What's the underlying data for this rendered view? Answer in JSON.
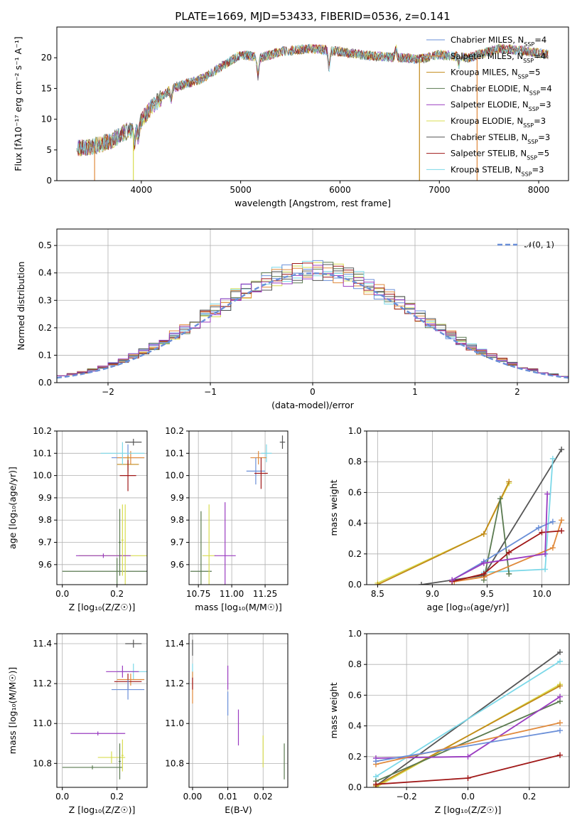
{
  "title": "PLATE=1669, MJD=53433, FIBERID=0536, z=0.141",
  "colors": {
    "Chabrier MILES": "#6a8fd8",
    "Salpeter MILES": "#e08a3c",
    "Kroupa MILES": "#c28a1a",
    "Chabrier ELODIE": "#5a7a50",
    "Salpeter ELODIE": "#9a3cc0",
    "Kroupa ELODIE": "#d8dc50",
    "Chabrier STELIB": "#555555",
    "Salpeter STELIB": "#a01818",
    "Kroupa STELIB": "#7cd8e8"
  },
  "chart_data": [
    {
      "id": "spectrum",
      "type": "line",
      "xlabel": "wavelength [Angstrom, rest frame]",
      "ylabel": "Flux [fλ10⁻¹⁷ erg cm⁻² s⁻¹ A⁻¹]",
      "xlim": [
        3150,
        8300
      ],
      "ylim": [
        0,
        25
      ],
      "xticks": [
        4000,
        5000,
        6000,
        7000,
        8000
      ],
      "yticks": [
        0,
        5,
        10,
        15,
        20
      ],
      "legend_position": "upper-right",
      "legend": [
        "Chabrier MILES, N_SSP=4",
        "Salpeter MILES, N_SSP=4",
        "Kroupa MILES, N_SSP=5",
        "Chabrier ELODIE, N_SSP=4",
        "Salpeter ELODIE, N_SSP=3",
        "Kroupa ELODIE, N_SSP=3",
        "Chabrier STELIB, N_SSP=3",
        "Salpeter STELIB, N_SSP=5",
        "Kroupa STELIB, N_SSP=3"
      ],
      "continuum": [
        [
          3350,
          5.3
        ],
        [
          3500,
          5.5
        ],
        [
          3700,
          6.5
        ],
        [
          3850,
          8
        ],
        [
          3950,
          8.5
        ],
        [
          4100,
          12
        ],
        [
          4300,
          15
        ],
        [
          4600,
          16.5
        ],
        [
          4800,
          18.5
        ],
        [
          5000,
          20.5
        ],
        [
          5200,
          20
        ],
        [
          5400,
          21
        ],
        [
          5700,
          21.5
        ],
        [
          6000,
          21
        ],
        [
          6200,
          20.5
        ],
        [
          6400,
          20.2
        ],
        [
          6600,
          20
        ],
        [
          6800,
          19.8
        ],
        [
          7000,
          20.5
        ],
        [
          7300,
          20
        ],
        [
          7600,
          21.5
        ],
        [
          7800,
          21.2
        ],
        [
          8100,
          20.5
        ]
      ],
      "features": [
        [
          3930,
          -2.5
        ],
        [
          3970,
          -2
        ],
        [
          4300,
          -2
        ],
        [
          5175,
          -3
        ],
        [
          5890,
          -3
        ],
        [
          6563,
          1.5
        ],
        [
          7200,
          -1.5
        ]
      ],
      "spikes": [
        [
          3530,
          "Salpeter MILES"
        ],
        [
          3920,
          "Kroupa ELODIE"
        ],
        [
          6800,
          "Kroupa MILES"
        ],
        [
          7380,
          "Salpeter MILES"
        ]
      ],
      "x_start": 3350,
      "x_end": 8100
    },
    {
      "id": "residuals",
      "type": "bar",
      "xlabel": "(data-model)/error",
      "ylabel": "Normed distribution",
      "xlim": [
        -2.5,
        2.5
      ],
      "ylim": [
        0,
        0.56
      ],
      "xticks": [
        -2,
        -1,
        0,
        1,
        2
      ],
      "yticks": [
        0.0,
        0.1,
        0.2,
        0.3,
        0.4,
        0.5
      ],
      "legend_position": "upper-right",
      "legend": [
        "𝒩(0, 1)"
      ],
      "bin_width": 0.1
    },
    {
      "id": "Z_vs_age",
      "type": "scatter",
      "xlabel": "Z [log₁₀(Z/Z☉)]",
      "ylabel": "age  [log₁₀(age/yr)]",
      "xlim": [
        -0.02,
        0.31
      ],
      "ylim": [
        9.51,
        10.2
      ],
      "xticks": [
        0.0,
        0.2
      ],
      "yticks": [
        9.6,
        9.7,
        9.8,
        9.9,
        10.0,
        10.1,
        10.2
      ],
      "points": [
        {
          "m": "Chabrier STELIB",
          "x": 0.26,
          "y": 10.15,
          "ex": 0.03,
          "ey": 0.015
        },
        {
          "m": "Chabrier MILES",
          "x": 0.24,
          "y": 10.08,
          "ex": 0.06,
          "ey": 0.06
        },
        {
          "m": "Salpeter MILES",
          "x": 0.25,
          "y": 10.08,
          "ex": 0.05,
          "ey": 0.03
        },
        {
          "m": "Kroupa MILES",
          "x": 0.24,
          "y": 10.05,
          "ex": 0.04,
          "ey": 0.04
        },
        {
          "m": "Kroupa STELIB",
          "x": 0.22,
          "y": 10.1,
          "ex": 0.08,
          "ey": 0.05
        },
        {
          "m": "Salpeter STELIB",
          "x": 0.24,
          "y": 10.0,
          "ex": 0.03,
          "ey": 0.07
        },
        {
          "m": "Chabrier ELODIE",
          "x": 0.2,
          "y": 9.57,
          "ex": 0.2,
          "ey": 0.06
        },
        {
          "m": "Kroupa ELODIE",
          "x": 0.23,
          "y": 9.64,
          "ex": 0.17,
          "ey": 0.23
        },
        {
          "m": "Salpeter ELODIE",
          "x": 0.15,
          "y": 9.64,
          "ex": 0.1,
          "ey": 0.01
        },
        {
          "m": "Chabrier ELODIE",
          "x": 0.21,
          "y": 9.7,
          "ex": 0.004,
          "ey": 0.15
        },
        {
          "m": "Kroupa ELODIE",
          "x": 0.22,
          "y": 9.71,
          "ex": 0.004,
          "ey": 0.16
        }
      ]
    },
    {
      "id": "mass_vs_age",
      "type": "scatter",
      "xlabel": "mass [log₁₀(M/M☉)]",
      "ylabel": "",
      "xlim": [
        10.68,
        11.42
      ],
      "ylim": [
        9.51,
        10.2
      ],
      "xticks": [
        10.75,
        11.0,
        11.25
      ],
      "yticks": [
        9.6,
        9.7,
        9.8,
        9.9,
        10.0,
        10.1,
        10.2
      ],
      "points": [
        {
          "m": "Chabrier STELIB",
          "x": 11.38,
          "y": 10.15,
          "ex": 0.02,
          "ey": 0.03
        },
        {
          "m": "Kroupa STELIB",
          "x": 11.26,
          "y": 10.1,
          "ex": 0.04,
          "ey": 0.04
        },
        {
          "m": "Salpeter MILES",
          "x": 11.2,
          "y": 10.08,
          "ex": 0.06,
          "ey": 0.03
        },
        {
          "m": "Chabrier MILES",
          "x": 11.18,
          "y": 10.02,
          "ex": 0.07,
          "ey": 0.06
        },
        {
          "m": "Salpeter STELIB",
          "x": 11.22,
          "y": 10.01,
          "ex": 0.05,
          "ey": 0.07
        },
        {
          "m": "Chabrier ELODIE",
          "x": 10.77,
          "y": 9.57,
          "ex": 0.08,
          "ey": 0.27
        },
        {
          "m": "Kroupa ELODIE",
          "x": 10.83,
          "y": 9.64,
          "ex": 0.05,
          "ey": 0.23
        },
        {
          "m": "Salpeter ELODIE",
          "x": 10.95,
          "y": 9.64,
          "ex": 0.08,
          "ey": 0.24
        }
      ]
    },
    {
      "id": "age_vs_weight",
      "type": "line",
      "xlabel": "age  [log₁₀(age/yr)]",
      "ylabel": "mass weight",
      "xlim": [
        8.4,
        10.25
      ],
      "ylim": [
        0,
        1.0
      ],
      "xticks": [
        8.5,
        9.0,
        9.5,
        10.0
      ],
      "yticks": [
        0.0,
        0.2,
        0.4,
        0.6,
        0.8,
        1.0
      ],
      "series": [
        {
          "m": "Kroupa ELODIE",
          "x": [
            8.5,
            9.47,
            9.7
          ],
          "y": [
            0.01,
            0.33,
            0.66
          ]
        },
        {
          "m": "Kroupa MILES",
          "x": [
            8.5,
            9.47,
            9.7
          ],
          "y": [
            0.0,
            0.33,
            0.67
          ]
        },
        {
          "m": "Chabrier STELIB",
          "x": [
            8.9,
            9.47,
            10.18
          ],
          "y": [
            0.0,
            0.06,
            0.88
          ]
        },
        {
          "m": "Kroupa STELIB",
          "x": [
            9.47,
            10.03,
            10.1
          ],
          "y": [
            0.08,
            0.1,
            0.82
          ]
        },
        {
          "m": "Chabrier ELODIE",
          "x": [
            9.47,
            9.62,
            9.7
          ],
          "y": [
            0.03,
            0.56,
            0.07
          ]
        },
        {
          "m": "Salpeter MILES",
          "x": [
            9.2,
            9.47,
            10.1,
            10.18
          ],
          "y": [
            0.02,
            0.05,
            0.24,
            0.42
          ]
        },
        {
          "m": "Chabrier MILES",
          "x": [
            9.18,
            9.47,
            9.97,
            10.1
          ],
          "y": [
            0.03,
            0.15,
            0.37,
            0.41
          ]
        },
        {
          "m": "Salpeter STELIB",
          "x": [
            9.18,
            9.47,
            9.7,
            10.0,
            10.18
          ],
          "y": [
            0.02,
            0.07,
            0.21,
            0.34,
            0.35
          ]
        },
        {
          "m": "Salpeter ELODIE",
          "x": [
            9.18,
            9.47,
            10.03,
            10.05
          ],
          "y": [
            0.03,
            0.14,
            0.2,
            0.59
          ]
        }
      ]
    },
    {
      "id": "Z_vs_mass",
      "type": "scatter",
      "xlabel": "Z [log₁₀(Z/Z☉)]",
      "ylabel": "mass [log₁₀(M/M☉)]",
      "xlim": [
        -0.02,
        0.31
      ],
      "ylim": [
        10.68,
        11.45
      ],
      "xticks": [
        0.0,
        0.2
      ],
      "yticks": [
        10.8,
        11.0,
        11.2,
        11.4
      ],
      "points": [
        {
          "m": "Chabrier STELIB",
          "x": 0.26,
          "y": 11.4,
          "ex": 0.03,
          "ey": 0.02
        },
        {
          "m": "Kroupa STELIB",
          "x": 0.26,
          "y": 11.26,
          "ex": 0.06,
          "ey": 0.04
        },
        {
          "m": "Salpeter ELODIE",
          "x": 0.22,
          "y": 11.26,
          "ex": 0.06,
          "ey": 0.03
        },
        {
          "m": "Salpeter MILES",
          "x": 0.25,
          "y": 11.22,
          "ex": 0.05,
          "ey": 0.03
        },
        {
          "m": "Salpeter STELIB",
          "x": 0.24,
          "y": 11.21,
          "ex": 0.05,
          "ey": 0.04
        },
        {
          "m": "Chabrier MILES",
          "x": 0.24,
          "y": 11.17,
          "ex": 0.06,
          "ey": 0.05
        },
        {
          "m": "Salpeter ELODIE",
          "x": 0.13,
          "y": 10.95,
          "ex": 0.1,
          "ey": 0.01
        },
        {
          "m": "Kroupa ELODIE",
          "x": 0.18,
          "y": 10.83,
          "ex": 0.05,
          "ey": 0.03
        },
        {
          "m": "Chabrier ELODIE",
          "x": 0.11,
          "y": 10.78,
          "ex": 0.11,
          "ey": 0.01
        },
        {
          "m": "Chabrier ELODIE",
          "x": 0.21,
          "y": 10.81,
          "ex": 0.004,
          "ey": 0.09
        },
        {
          "m": "Kroupa ELODIE",
          "x": 0.22,
          "y": 10.84,
          "ex": 0.004,
          "ey": 0.08
        }
      ]
    },
    {
      "id": "EBV_vs_mass",
      "type": "scatter",
      "xlabel": "E(B-V)",
      "ylabel": "",
      "xlim": [
        -0.001,
        0.027
      ],
      "ylim": [
        10.68,
        11.45
      ],
      "xticks": [
        0.0,
        0.01,
        0.02
      ],
      "yticks": [
        10.8,
        11.0,
        11.2,
        11.4
      ],
      "points": [
        {
          "m": "Chabrier STELIB",
          "x": 0.0,
          "y": 11.38,
          "ex": 0,
          "ey": 0.04
        },
        {
          "m": "Kroupa STELIB",
          "x": 0.0,
          "y": 11.26,
          "ex": 0,
          "ey": 0.04
        },
        {
          "m": "Salpeter MILES",
          "x": 0.0,
          "y": 11.18,
          "ex": 0,
          "ey": 0.08
        },
        {
          "m": "Salpeter STELIB",
          "x": 0.0,
          "y": 11.2,
          "ex": 0,
          "ey": 0.03
        },
        {
          "m": "Salpeter ELODIE",
          "x": 0.01,
          "y": 11.23,
          "ex": 0,
          "ey": 0.06
        },
        {
          "m": "Chabrier MILES",
          "x": 0.01,
          "y": 11.1,
          "ex": 0,
          "ey": 0.06
        },
        {
          "m": "Salpeter ELODIE",
          "x": 0.013,
          "y": 10.98,
          "ex": 0,
          "ey": 0.09
        },
        {
          "m": "Kroupa ELODIE",
          "x": 0.02,
          "y": 10.86,
          "ex": 0,
          "ey": 0.08
        },
        {
          "m": "Chabrier ELODIE",
          "x": 0.026,
          "y": 10.81,
          "ex": 0,
          "ey": 0.09
        }
      ]
    },
    {
      "id": "Z_vs_weight",
      "type": "line",
      "xlabel": "Z [log₁₀(Z/Z☉)]",
      "ylabel": "mass weight",
      "xlim": [
        -0.33,
        0.33
      ],
      "ylim": [
        0,
        1.0
      ],
      "xticks": [
        -0.2,
        0.0,
        0.2
      ],
      "yticks": [
        0.0,
        0.2,
        0.4,
        0.6,
        0.8,
        1.0
      ],
      "series": [
        {
          "m": "Chabrier STELIB",
          "x": [
            -0.3,
            0.3
          ],
          "y": [
            0.01,
            0.88
          ]
        },
        {
          "m": "Kroupa STELIB",
          "x": [
            -0.3,
            0.3
          ],
          "y": [
            0.07,
            0.82
          ]
        },
        {
          "m": "Kroupa ELODIE",
          "x": [
            -0.3,
            0.3
          ],
          "y": [
            0.0,
            0.67
          ]
        },
        {
          "m": "Kroupa MILES",
          "x": [
            -0.3,
            0.3
          ],
          "y": [
            0.01,
            0.66
          ]
        },
        {
          "m": "Chabrier ELODIE",
          "x": [
            -0.3,
            0.3
          ],
          "y": [
            0.04,
            0.56
          ]
        },
        {
          "m": "Salpeter ELODIE",
          "x": [
            -0.3,
            0.0,
            0.3
          ],
          "y": [
            0.19,
            0.2,
            0.59
          ]
        },
        {
          "m": "Salpeter MILES",
          "x": [
            -0.3,
            0.3
          ],
          "y": [
            0.15,
            0.42
          ]
        },
        {
          "m": "Chabrier MILES",
          "x": [
            -0.3,
            0.3
          ],
          "y": [
            0.17,
            0.37
          ]
        },
        {
          "m": "Salpeter STELIB",
          "x": [
            -0.3,
            0.0,
            0.3
          ],
          "y": [
            0.02,
            0.06,
            0.21
          ]
        }
      ]
    }
  ]
}
